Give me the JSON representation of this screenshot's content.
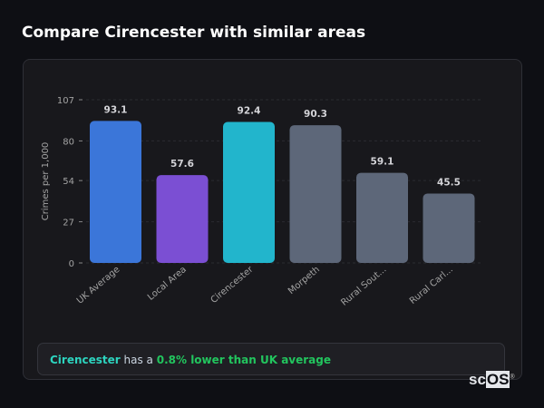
{
  "header": {
    "title": "Compare Cirencester with similar areas"
  },
  "chart_data": {
    "type": "bar",
    "categories": [
      "UK Average",
      "Local Area",
      "Cirencester",
      "Morpeth",
      "Rural Sout...",
      "Rural Carl..."
    ],
    "values": [
      93.1,
      57.6,
      92.4,
      90.3,
      59.1,
      45.5
    ],
    "value_labels": [
      "93.1",
      "57.6",
      "92.4",
      "90.3",
      "59.1",
      "45.5"
    ],
    "colors": [
      "#3b76d9",
      "#7b4fd3",
      "#22b5cc",
      "#5d6779",
      "#5d6779",
      "#5d6779"
    ],
    "ylabel": "Crimes per 1,000",
    "xlabel": "",
    "ylim": [
      0,
      107
    ],
    "yticks": [
      0,
      27,
      54,
      80,
      107
    ],
    "grid": true
  },
  "footer": {
    "area": "Cirencester",
    "middle": " has a ",
    "highlight": "0.8% lower than UK average"
  },
  "logo": {
    "text_a": "sc",
    "text_b": "OS",
    "mark": "®"
  }
}
